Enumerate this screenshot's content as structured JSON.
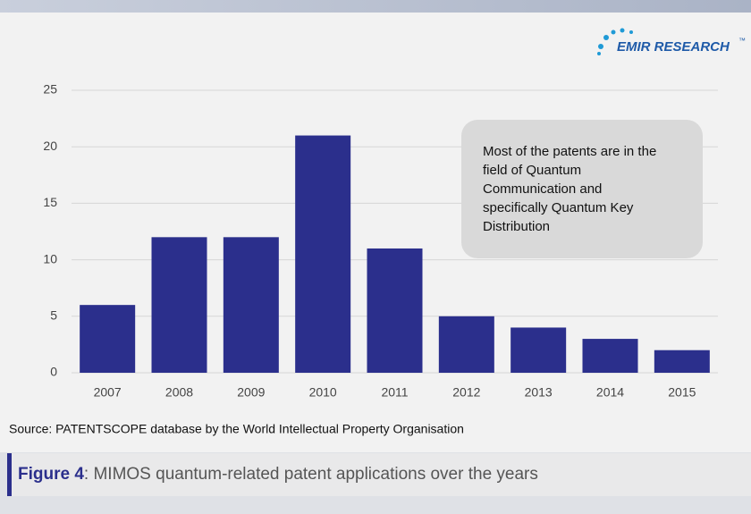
{
  "logo": {
    "name": "EMIR RESEARCH",
    "mark": "™"
  },
  "chart_data": {
    "type": "bar",
    "categories": [
      "2007",
      "2008",
      "2009",
      "2010",
      "2011",
      "2012",
      "2013",
      "2014",
      "2015"
    ],
    "values": [
      6,
      12,
      12,
      21,
      11,
      5,
      4,
      3,
      2
    ],
    "color": "#2b2f8c",
    "ylim": [
      0,
      25
    ],
    "yticks": [
      0,
      5,
      10,
      15,
      20,
      25
    ],
    "grid": true,
    "annotation": [
      "Most of the patents are in the",
      "field of Quantum",
      "Communication and",
      "specifically Quantum Key",
      "Distribution"
    ]
  },
  "source": "Source: PATENTSCOPE database by the World Intellectual Property Organisation",
  "caption": {
    "label": "Figure 4",
    "text": ": MIMOS quantum-related patent applications over the years"
  }
}
